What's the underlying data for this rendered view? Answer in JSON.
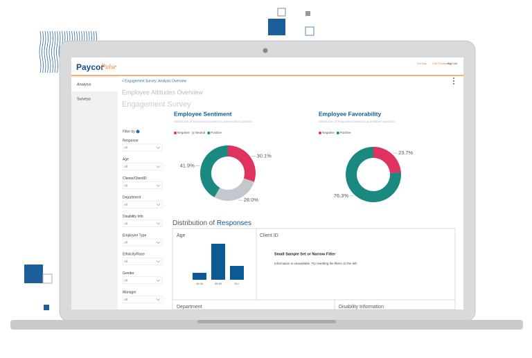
{
  "header": {
    "logo": "Paycor",
    "logo_script": "Pulse",
    "links": [
      "Get Help",
      "Give Feedback",
      "Sign Out"
    ]
  },
  "sidebar": [
    "Analysis",
    "Surveys"
  ],
  "breadcrumb": "< Engagement Survey: Analysis Overview",
  "title": "Employee Attitudes Overview",
  "subtitle": "Engagement Survey",
  "filters": {
    "title": "Filter by",
    "items": [
      {
        "label": "Response",
        "value": "All"
      },
      {
        "label": "Age",
        "value": "All"
      },
      {
        "label": "Clients/ClientID",
        "value": "All"
      },
      {
        "label": "Department",
        "value": "All"
      },
      {
        "label": "Disability Info",
        "value": "All"
      },
      {
        "label": "Employee Type",
        "value": "All"
      },
      {
        "label": "Ethnicity/Race",
        "value": "All"
      },
      {
        "label": "Gender",
        "value": "All"
      },
      {
        "label": "Manager",
        "value": "All"
      }
    ]
  },
  "sentiment": {
    "type": "pie",
    "title": "Employee Sentiment",
    "subtitle": "Distribution of Expressions based on open-ended questions",
    "categories": [
      "Negative",
      "Neutral",
      "Positive"
    ],
    "values": [
      30.1,
      28.0,
      41.9
    ],
    "value_labels": [
      "30.1%",
      "28.0%",
      "41.9%"
    ],
    "colors": [
      "#e0325f",
      "#c3c7ce",
      "#1a8a80"
    ]
  },
  "favorability": {
    "type": "pie",
    "title": "Employee Favorability",
    "subtitle": "Distribution of Responses based on quantitative questions",
    "categories": [
      "Negative",
      "Positive"
    ],
    "values": [
      23.7,
      76.3
    ],
    "value_labels": [
      "23.7%",
      "76.3%"
    ],
    "colors": [
      "#e0325f",
      "#1a8a80"
    ]
  },
  "distribution": {
    "title": "Distribution of",
    "title_highlight": "Responses",
    "age": {
      "type": "bar",
      "title": "Age",
      "categories": [
        "18-34",
        "35-50",
        "51+"
      ],
      "values": [
        10,
        52,
        20
      ],
      "color": "#0b5a96"
    },
    "client": {
      "title": "Client ID",
      "message_title": "Small Sample Set or Narrow Filter",
      "message": "Information is unavailable. Try resetting the filters on the left."
    },
    "department": "Department",
    "disability": "Disability Information"
  }
}
